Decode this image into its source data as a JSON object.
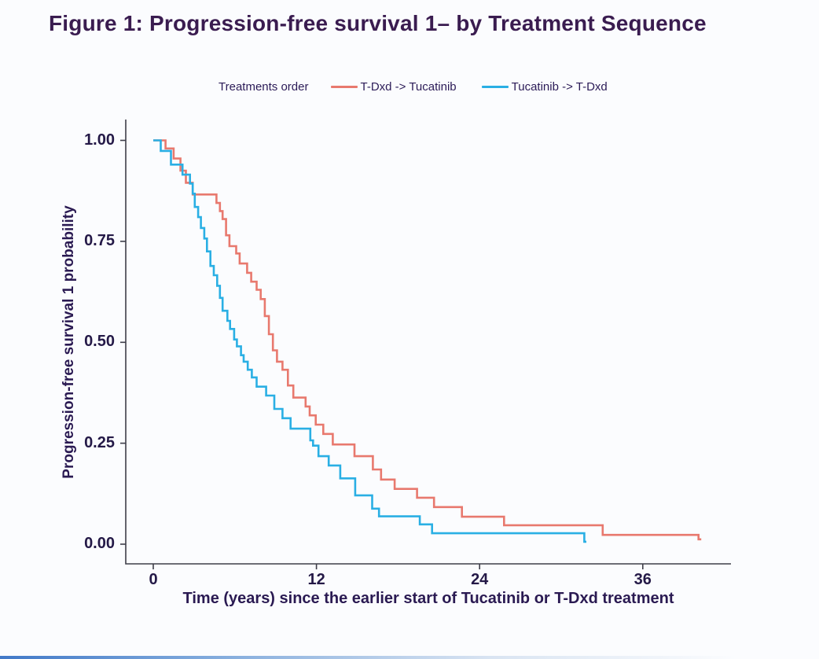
{
  "chart_data": {
    "type": "line",
    "subtype": "kaplan-meier-step",
    "title": "Figure 1: Progression-free survival 1– by Treatment Sequence",
    "xlabel": "Time (years) since the earlier start of Tucatinib or T-Dxd treatment",
    "ylabel": "Progression-free survival 1 probability",
    "legend_title": "Treatments order",
    "legend_position": "top",
    "grid": false,
    "xlim": [
      0,
      42.5
    ],
    "ylim": [
      0,
      1
    ],
    "x_ticks": [
      0,
      12,
      24,
      36
    ],
    "x_tick_labels": [
      "0",
      "12",
      "24",
      "36"
    ],
    "y_ticks": [
      1.0,
      0.75,
      0.5,
      0.25,
      0.0
    ],
    "y_tick_labels": [
      "1.00",
      "0.75",
      "0.50",
      "0.25",
      "0.00"
    ],
    "colors": {
      "title_text": "#3A1C50",
      "axis_text": "#2A1A52",
      "tick_text": "#241947",
      "axis_line": "#3E3E49",
      "background": "#FBFCFE",
      "window_edge_blue": "#4A84CC"
    },
    "series": [
      {
        "name": "T-Dxd -> Tucatinib",
        "color": "#E8796E",
        "start": [
          0,
          1.0
        ],
        "steps": [
          [
            0.9,
            0.98
          ],
          [
            1.5,
            0.955
          ],
          [
            2.0,
            0.925
          ],
          [
            2.4,
            0.895
          ],
          [
            2.9,
            0.866
          ],
          [
            4.65,
            0.845
          ],
          [
            4.9,
            0.825
          ],
          [
            5.1,
            0.805
          ],
          [
            5.35,
            0.765
          ],
          [
            5.6,
            0.738
          ],
          [
            6.1,
            0.72
          ],
          [
            6.35,
            0.695
          ],
          [
            6.9,
            0.672
          ],
          [
            7.2,
            0.65
          ],
          [
            7.6,
            0.63
          ],
          [
            7.9,
            0.607
          ],
          [
            8.2,
            0.565
          ],
          [
            8.5,
            0.52
          ],
          [
            8.8,
            0.48
          ],
          [
            9.1,
            0.452
          ],
          [
            9.5,
            0.432
          ],
          [
            9.9,
            0.393
          ],
          [
            10.3,
            0.363
          ],
          [
            11.2,
            0.341
          ],
          [
            11.5,
            0.319
          ],
          [
            11.95,
            0.296
          ],
          [
            12.5,
            0.273
          ],
          [
            13.2,
            0.247
          ],
          [
            14.8,
            0.218
          ],
          [
            16.15,
            0.185
          ],
          [
            16.75,
            0.16
          ],
          [
            17.75,
            0.137
          ],
          [
            19.4,
            0.115
          ],
          [
            20.65,
            0.092
          ],
          [
            22.7,
            0.068
          ],
          [
            25.8,
            0.047
          ],
          [
            33.05,
            0.023
          ],
          [
            40.1,
            0.012
          ]
        ],
        "end_time": 40.3
      },
      {
        "name": "Tucatinib -> T-Dxd",
        "color": "#2AAFE4",
        "start": [
          0,
          1.0
        ],
        "steps": [
          [
            0.55,
            0.974
          ],
          [
            1.3,
            0.94
          ],
          [
            2.15,
            0.915
          ],
          [
            2.7,
            0.893
          ],
          [
            2.9,
            0.868
          ],
          [
            3.05,
            0.835
          ],
          [
            3.3,
            0.81
          ],
          [
            3.5,
            0.783
          ],
          [
            3.75,
            0.757
          ],
          [
            3.95,
            0.725
          ],
          [
            4.2,
            0.689
          ],
          [
            4.45,
            0.666
          ],
          [
            4.7,
            0.64
          ],
          [
            4.9,
            0.61
          ],
          [
            5.1,
            0.578
          ],
          [
            5.45,
            0.553
          ],
          [
            5.65,
            0.533
          ],
          [
            5.95,
            0.507
          ],
          [
            6.15,
            0.49
          ],
          [
            6.45,
            0.468
          ],
          [
            6.65,
            0.452
          ],
          [
            6.95,
            0.432
          ],
          [
            7.25,
            0.413
          ],
          [
            7.6,
            0.39
          ],
          [
            8.3,
            0.368
          ],
          [
            8.9,
            0.335
          ],
          [
            9.5,
            0.312
          ],
          [
            10.1,
            0.286
          ],
          [
            11.55,
            0.257
          ],
          [
            11.75,
            0.244
          ],
          [
            12.15,
            0.218
          ],
          [
            12.9,
            0.195
          ],
          [
            13.75,
            0.163
          ],
          [
            14.85,
            0.121
          ],
          [
            16.1,
            0.088
          ],
          [
            16.6,
            0.069
          ],
          [
            19.6,
            0.049
          ],
          [
            20.5,
            0.027
          ],
          [
            31.7,
            0.006
          ]
        ],
        "end_time": 31.85
      }
    ]
  }
}
